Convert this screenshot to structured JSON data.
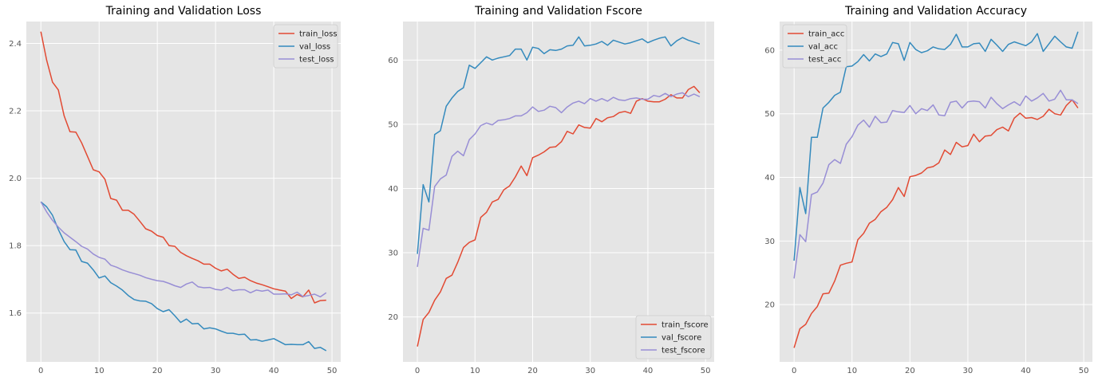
{
  "colors": {
    "panel_bg": "#E5E5E5",
    "grid": "#FFFFFF",
    "red": "#E24A33",
    "blue": "#348ABD",
    "purple": "#988ED5",
    "tick_text": "#555555"
  },
  "chart_data": [
    {
      "type": "line",
      "title": "Training and Validation Loss",
      "xlim": [
        -2.5,
        51.5
      ],
      "ylim": [
        1.455,
        2.465
      ],
      "xticks": [
        0,
        10,
        20,
        30,
        40,
        50
      ],
      "yticks": [
        1.6,
        1.8,
        2.0,
        2.2,
        2.4
      ],
      "ytick_labels": [
        "1.6",
        "1.8",
        "2.0",
        "2.2",
        "2.4"
      ],
      "grid": true,
      "legend_position": "upper right",
      "series": [
        {
          "name": "train_loss",
          "color": "red",
          "values": [
            2.435,
            2.35,
            2.285,
            2.262,
            2.185,
            2.138,
            2.137,
            2.105,
            2.065,
            2.025,
            2.019,
            1.997,
            1.94,
            1.935,
            1.905,
            1.905,
            1.893,
            1.872,
            1.85,
            1.843,
            1.83,
            1.825,
            1.8,
            1.798,
            1.78,
            1.77,
            1.762,
            1.755,
            1.745,
            1.745,
            1.733,
            1.725,
            1.73,
            1.715,
            1.703,
            1.706,
            1.696,
            1.689,
            1.684,
            1.678,
            1.672,
            1.668,
            1.665,
            1.643,
            1.655,
            1.648,
            1.668,
            1.63,
            1.637,
            1.638
          ]
        },
        {
          "name": "val_loss",
          "color": "blue",
          "values": [
            1.93,
            1.915,
            1.89,
            1.848,
            1.812,
            1.788,
            1.787,
            1.753,
            1.748,
            1.728,
            1.704,
            1.71,
            1.69,
            1.68,
            1.668,
            1.652,
            1.64,
            1.636,
            1.635,
            1.628,
            1.613,
            1.604,
            1.61,
            1.592,
            1.572,
            1.582,
            1.568,
            1.569,
            1.553,
            1.556,
            1.553,
            1.546,
            1.54,
            1.54,
            1.536,
            1.537,
            1.52,
            1.521,
            1.516,
            1.52,
            1.524,
            1.515,
            1.506,
            1.507,
            1.506,
            1.506,
            1.515,
            1.495,
            1.498,
            1.488
          ]
        },
        {
          "name": "test_loss",
          "color": "purple",
          "values": [
            1.93,
            1.9,
            1.875,
            1.855,
            1.838,
            1.825,
            1.812,
            1.798,
            1.79,
            1.775,
            1.765,
            1.76,
            1.742,
            1.736,
            1.728,
            1.722,
            1.717,
            1.712,
            1.705,
            1.7,
            1.696,
            1.694,
            1.688,
            1.681,
            1.676,
            1.686,
            1.692,
            1.678,
            1.675,
            1.676,
            1.67,
            1.668,
            1.676,
            1.666,
            1.669,
            1.669,
            1.66,
            1.668,
            1.665,
            1.668,
            1.656,
            1.656,
            1.657,
            1.654,
            1.662,
            1.649,
            1.652,
            1.656,
            1.648,
            1.66
          ]
        }
      ]
    },
    {
      "type": "line",
      "title": "Training and Validation Fscore",
      "xlim": [
        -2.5,
        51.5
      ],
      "ylim": [
        13.0,
        66.0
      ],
      "xticks": [
        0,
        10,
        20,
        30,
        40,
        50
      ],
      "yticks": [
        20,
        30,
        40,
        50,
        60
      ],
      "ytick_labels": [
        "20",
        "30",
        "40",
        "50",
        "60"
      ],
      "grid": true,
      "legend_position": "lower right",
      "series": [
        {
          "name": "train_fscore",
          "color": "red",
          "values": [
            15.4,
            19.6,
            20.7,
            22.6,
            23.9,
            26.0,
            26.5,
            28.5,
            30.8,
            31.6,
            32.0,
            35.5,
            36.3,
            37.9,
            38.3,
            39.8,
            40.4,
            41.8,
            43.5,
            42.0,
            44.8,
            45.2,
            45.7,
            46.4,
            46.5,
            47.3,
            48.9,
            48.5,
            49.9,
            49.5,
            49.4,
            50.9,
            50.4,
            51.0,
            51.2,
            51.8,
            52.0,
            51.7,
            53.6,
            54.0,
            53.6,
            53.5,
            53.5,
            53.9,
            54.6,
            54.1,
            54.1,
            55.4,
            55.9,
            54.9
          ]
        },
        {
          "name": "val_fscore",
          "color": "blue",
          "values": [
            29.8,
            40.6,
            37.9,
            48.4,
            49.0,
            52.8,
            54.1,
            55.1,
            55.7,
            59.2,
            58.7,
            59.6,
            60.5,
            60.0,
            60.3,
            60.5,
            60.7,
            61.7,
            61.7,
            60.0,
            62.0,
            61.8,
            61.0,
            61.6,
            61.5,
            61.7,
            62.2,
            62.3,
            63.6,
            62.2,
            62.3,
            62.5,
            62.9,
            62.3,
            63.1,
            62.8,
            62.5,
            62.7,
            63.0,
            63.3,
            62.7,
            63.1,
            63.4,
            63.6,
            62.2,
            63.0,
            63.5,
            63.1,
            62.8,
            62.5
          ]
        },
        {
          "name": "test_fscore",
          "color": "purple",
          "values": [
            27.8,
            33.8,
            33.5,
            40.3,
            41.5,
            42.1,
            45.0,
            45.8,
            45.1,
            47.6,
            48.5,
            49.8,
            50.2,
            49.9,
            50.6,
            50.7,
            50.9,
            51.3,
            51.3,
            51.8,
            52.7,
            52.0,
            52.2,
            52.8,
            52.6,
            51.8,
            52.7,
            53.3,
            53.6,
            53.2,
            54.0,
            53.6,
            54.0,
            53.6,
            54.2,
            53.8,
            53.7,
            54.0,
            54.1,
            53.9,
            53.9,
            54.5,
            54.3,
            54.8,
            54.3,
            54.7,
            54.9,
            54.3,
            54.7,
            54.3
          ]
        }
      ]
    },
    {
      "type": "line",
      "title": "Training and Validation Accuracy",
      "xlim": [
        -2.5,
        51.5
      ],
      "ylim": [
        11.0,
        64.5
      ],
      "xticks": [
        0,
        10,
        20,
        30,
        40,
        50
      ],
      "yticks": [
        20,
        30,
        40,
        50,
        60
      ],
      "ytick_labels": [
        "20",
        "30",
        "40",
        "50",
        "60"
      ],
      "grid": true,
      "legend_position": "upper left",
      "series": [
        {
          "name": "train_acc",
          "color": "red",
          "values": [
            13.2,
            16.2,
            16.9,
            18.6,
            19.7,
            21.7,
            21.8,
            23.7,
            26.2,
            26.5,
            26.7,
            30.2,
            31.2,
            32.8,
            33.4,
            34.6,
            35.3,
            36.5,
            38.4,
            37.0,
            40.1,
            40.3,
            40.7,
            41.5,
            41.7,
            42.3,
            44.3,
            43.6,
            45.5,
            44.8,
            45.0,
            46.8,
            45.6,
            46.5,
            46.6,
            47.5,
            47.9,
            47.3,
            49.3,
            50.1,
            49.3,
            49.4,
            49.1,
            49.6,
            50.7,
            50.0,
            49.8,
            51.3,
            52.2,
            50.9
          ]
        },
        {
          "name": "val_acc",
          "color": "blue",
          "values": [
            26.9,
            38.4,
            34.3,
            46.3,
            46.3,
            50.9,
            51.8,
            52.9,
            53.4,
            57.4,
            57.5,
            58.2,
            59.3,
            58.3,
            59.4,
            59.0,
            59.4,
            61.2,
            61.0,
            58.4,
            61.2,
            60.1,
            59.6,
            59.9,
            60.5,
            60.2,
            60.1,
            60.9,
            62.5,
            60.5,
            60.5,
            61.0,
            61.1,
            59.8,
            61.7,
            60.8,
            59.8,
            60.9,
            61.3,
            61.0,
            60.7,
            61.3,
            62.6,
            59.8,
            61.0,
            62.2,
            61.3,
            60.5,
            60.3,
            62.9
          ]
        },
        {
          "name": "test_acc",
          "color": "purple",
          "values": [
            24.1,
            31.0,
            29.9,
            37.3,
            37.7,
            39.1,
            42.0,
            42.8,
            42.2,
            45.2,
            46.4,
            48.2,
            49.0,
            47.9,
            49.6,
            48.6,
            48.7,
            50.5,
            50.3,
            50.2,
            51.3,
            50.0,
            50.8,
            50.5,
            51.4,
            49.8,
            49.7,
            51.8,
            52.0,
            50.9,
            51.9,
            52.0,
            51.9,
            50.9,
            52.6,
            51.6,
            50.8,
            51.4,
            51.9,
            51.3,
            52.8,
            52.0,
            52.5,
            53.2,
            52.0,
            52.3,
            53.7,
            52.2,
            52.2,
            51.6
          ]
        }
      ]
    }
  ]
}
